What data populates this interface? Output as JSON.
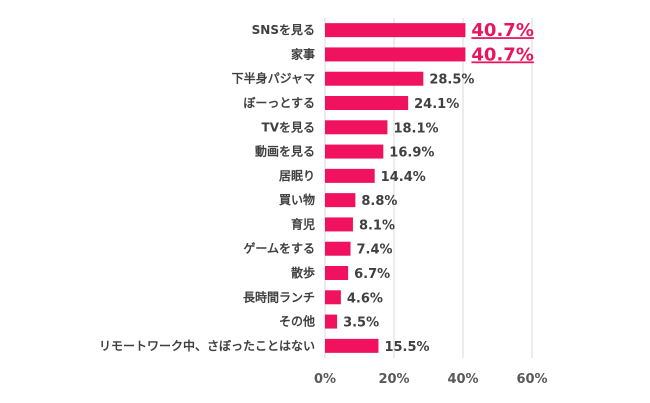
{
  "chart_data": {
    "type": "bar",
    "orientation": "horizontal",
    "categories": [
      "SNSを見る",
      "家事",
      "下半身パジャマ",
      "ぼーっとする",
      "TVを見る",
      "動画を見る",
      "居眠り",
      "買い物",
      "育児",
      "ゲームをする",
      "散歩",
      "長時間ランチ",
      "その他",
      "リモートワーク中、さぼったことはない"
    ],
    "values": [
      40.7,
      40.7,
      28.5,
      24.1,
      18.1,
      16.9,
      14.4,
      8.8,
      8.1,
      7.4,
      6.7,
      4.6,
      3.5,
      15.5
    ],
    "value_labels": [
      "40.7%",
      "40.7%",
      "28.5%",
      "24.1%",
      "18.1%",
      "16.9%",
      "14.4%",
      "8.8%",
      "8.1%",
      "7.4%",
      "6.7%",
      "4.6%",
      "3.5%",
      "15.5%"
    ],
    "highlighted_indices": [
      0,
      1
    ],
    "xlim": [
      0,
      60
    ],
    "x_ticks": [
      0,
      20,
      40,
      60
    ],
    "x_tick_labels": [
      "0%",
      "20%",
      "40%",
      "60%"
    ],
    "grid": true,
    "title": "",
    "xlabel": "",
    "ylabel": "",
    "colors": {
      "bar": "#f0115f",
      "highlight_text": "#e8175d",
      "text": "#404040",
      "grid": "#d9d9d9"
    }
  }
}
